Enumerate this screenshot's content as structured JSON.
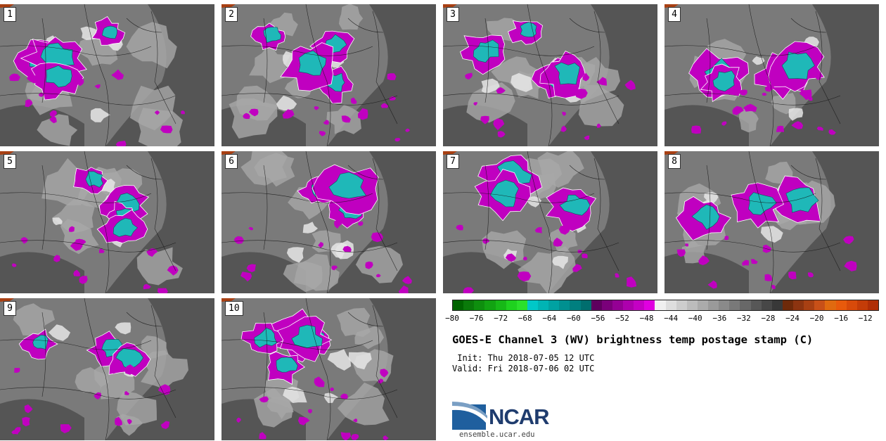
{
  "panels": [
    {
      "label": "1"
    },
    {
      "label": "2"
    },
    {
      "label": "3"
    },
    {
      "label": "4"
    },
    {
      "label": "5"
    },
    {
      "label": "6"
    },
    {
      "label": "7"
    },
    {
      "label": "8"
    },
    {
      "label": "9"
    },
    {
      "label": "10"
    }
  ],
  "colorbar": {
    "ticks": [
      "−80",
      "−76",
      "−72",
      "−68",
      "−64",
      "−60",
      "−56",
      "−52",
      "−48",
      "−44",
      "−40",
      "−36",
      "−32",
      "−28",
      "−24",
      "−20",
      "−16",
      "−12"
    ],
    "tick_values": [
      -80,
      -76,
      -72,
      -68,
      -64,
      -60,
      -56,
      -52,
      -48,
      -44,
      -40,
      -36,
      -32,
      -28,
      -24,
      -20,
      -16,
      -12
    ],
    "range": [
      -80,
      -10
    ],
    "colors": [
      "#006400",
      "#0a7a0a",
      "#0e8f0e",
      "#12a312",
      "#17b817",
      "#1fd11f",
      "#2be02b",
      "#00c8c8",
      "#00b4b4",
      "#00a2a2",
      "#009090",
      "#007f7f",
      "#006e6e",
      "#5e005e",
      "#7a007a",
      "#940094",
      "#ad00ad",
      "#c400c4",
      "#e000e0",
      "#f0f0f0",
      "#dedede",
      "#cdcdcd",
      "#bcbcbc",
      "#ababab",
      "#9a9a9a",
      "#8a8a8a",
      "#797979",
      "#686868",
      "#575757",
      "#474747",
      "#383838",
      "#6e2a0a",
      "#8c3410",
      "#a84013",
      "#c85018",
      "#e06a10",
      "#e85a0c",
      "#d84a0a",
      "#c43c08",
      "#b02e06"
    ]
  },
  "title": "GOES-E Channel 3 (WV) brightness temp postage stamp (C)",
  "init_line": " Init: Thu 2018-07-05 12 UTC",
  "valid_line": "Valid: Fri 2018-07-06 02 UTC",
  "logo": {
    "text": "NCAR",
    "url": "ensemble.ucar.edu",
    "colors": [
      "#1f5f9e",
      "#7a9fc4"
    ]
  },
  "map_colors": {
    "background": "#7a7a7a",
    "dark": "#555555",
    "light": "#a8a8a8",
    "white": "#e6e6e6",
    "cold_magenta": "#c000c0",
    "coldest_cyan": "#1fb8b8",
    "warm_edge": "#a84013",
    "boundary": "#101010"
  }
}
